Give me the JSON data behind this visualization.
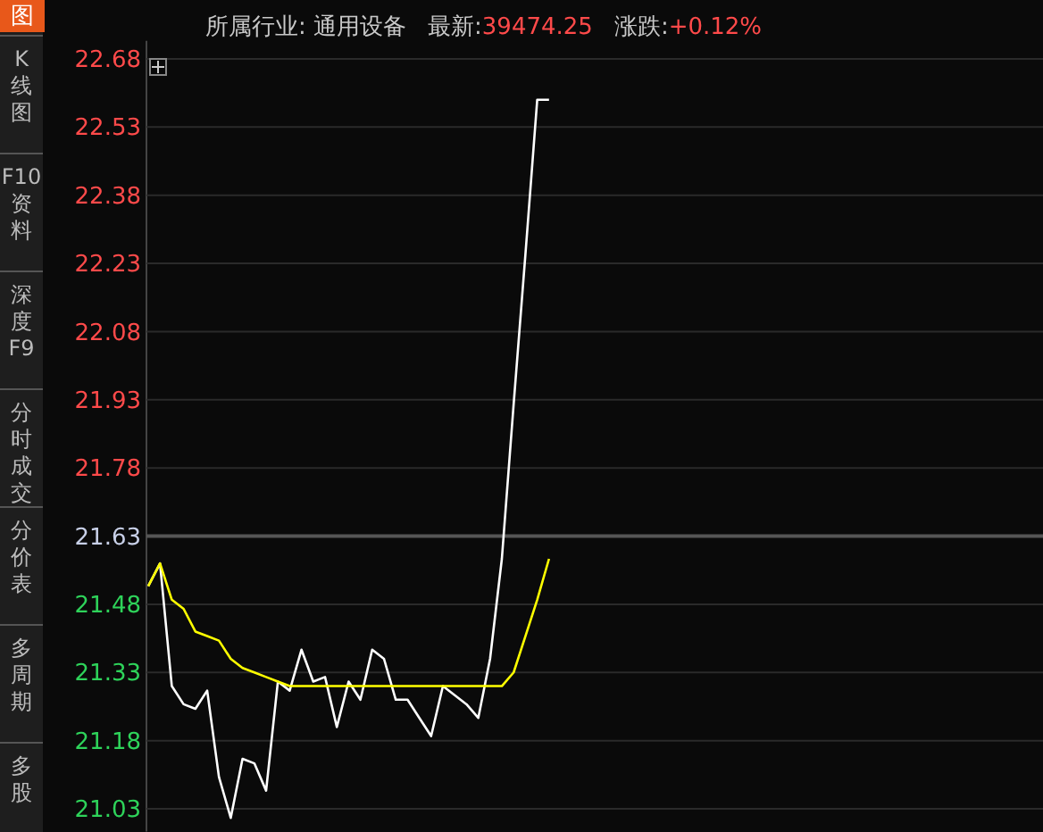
{
  "chart_data": [
    {
      "type": "line",
      "annotations": [
        "所属行业: 通用设备",
        "最新:39474.25",
        "涨跌:+0.12%"
      ],
      "categories": [
        null,
        null,
        null,
        null,
        null,
        null,
        null,
        null,
        null,
        null,
        null,
        null,
        null,
        null,
        null,
        null,
        null,
        null,
        null,
        null,
        null,
        null,
        null,
        null,
        null,
        null,
        null,
        null,
        null,
        null,
        null,
        null,
        null,
        null,
        null,
        null,
        null,
        null,
        null,
        null,
        null,
        null,
        null,
        null,
        null,
        null,
        null,
        null,
        null,
        null,
        null,
        null,
        null,
        null,
        null,
        null,
        null,
        null,
        null,
        null,
        null,
        null,
        null,
        null,
        null,
        null,
        null,
        null,
        null,
        null,
        null,
        null,
        null,
        null,
        null,
        null
      ],
      "series": [
        {
          "color": "#ffffff",
          "values": [
            21.52,
            21.57,
            21.3,
            21.26,
            21.25,
            21.29,
            21.1,
            21.01,
            21.14,
            21.13,
            21.07,
            21.31,
            21.29,
            21.38,
            21.31,
            21.32,
            21.21,
            21.31,
            21.27,
            21.38,
            21.36,
            21.27,
            21.27,
            21.23,
            21.19,
            21.3,
            21.28,
            21.26,
            21.23,
            21.36,
            21.58,
            21.92,
            22.25,
            22.59,
            22.59,
            null,
            null,
            null,
            null,
            null,
            null,
            null,
            null,
            null,
            null,
            null,
            null,
            null,
            null,
            null,
            null,
            null,
            null,
            null,
            null,
            null,
            null,
            null,
            null,
            null,
            null,
            null,
            null,
            null,
            null,
            null,
            null,
            null,
            null,
            null,
            null,
            null,
            null,
            null,
            null,
            null
          ]
        },
        {
          "color": "#ffff00",
          "values": [
            21.52,
            21.57,
            21.49,
            21.47,
            21.42,
            21.41,
            21.4,
            21.36,
            21.34,
            21.33,
            21.32,
            21.31,
            21.3,
            21.3,
            21.3,
            21.3,
            21.3,
            21.3,
            21.3,
            21.3,
            21.3,
            21.3,
            21.3,
            21.3,
            21.3,
            21.3,
            21.3,
            21.3,
            21.3,
            21.3,
            21.3,
            21.33,
            21.41,
            21.49,
            21.58,
            null,
            null,
            null,
            null,
            null,
            null,
            null,
            null,
            null,
            null,
            null,
            null,
            null,
            null,
            null,
            null,
            null,
            null,
            null,
            null,
            null,
            null,
            null,
            null,
            null,
            null,
            null,
            null,
            null,
            null,
            null,
            null,
            null,
            null,
            null,
            null,
            null,
            null,
            null,
            null,
            null
          ]
        }
      ],
      "ylim": [
        20.98,
        22.72
      ],
      "yticks": [
        21.03,
        21.18,
        21.33,
        21.48,
        21.63,
        21.78,
        21.93,
        22.08,
        22.23,
        22.38,
        22.53,
        22.68
      ],
      "grid": "y",
      "ref_lines": [
        {
          "axis": "y",
          "value": 21.63,
          "color": "#555555"
        }
      ],
      "marker": "none",
      "line_style": "solid",
      "tick_labels": "y"
    },
    {
      "type": "other",
      "annotations": [
        "图",
        "K线图",
        "F10资料",
        "深度F9",
        "分时成交",
        "分价表",
        "多周期",
        "多股"
      ]
    }
  ]
}
